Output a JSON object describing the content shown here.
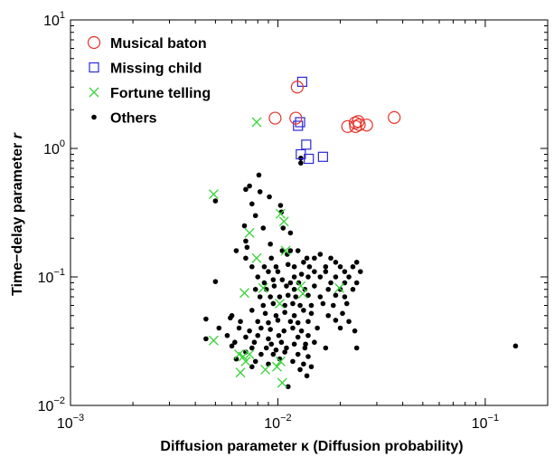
{
  "chart_data": {
    "type": "scatter",
    "xlabel": "Diffusion parameter κ  (Diffusion probability)",
    "ylabel": "Time−delay parameter r",
    "x_scale": "log",
    "y_scale": "log",
    "xlim": [
      0.001,
      0.2
    ],
    "ylim": [
      0.01,
      10
    ],
    "x_ticks": [
      {
        "base": "10",
        "exp": "−3",
        "value": 0.001
      },
      {
        "base": "10",
        "exp": "−2",
        "value": 0.01
      },
      {
        "base": "10",
        "exp": "−1",
        "value": 0.1
      }
    ],
    "y_ticks": [
      {
        "base": "10",
        "exp": "−2",
        "value": 0.01
      },
      {
        "base": "10",
        "exp": "−1",
        "value": 0.1
      },
      {
        "base": "10",
        "exp": "0",
        "value": 1
      },
      {
        "base": "10",
        "exp": "1",
        "value": 10
      }
    ],
    "grid": false,
    "legend_position": "top-left",
    "series": [
      {
        "name": "Musical baton",
        "marker": "circle",
        "color": "#e8312a",
        "points": [
          [
            0.0124,
            3.0
          ],
          [
            0.0097,
            1.72
          ],
          [
            0.0122,
            1.72
          ],
          [
            0.0217,
            1.48
          ],
          [
            0.0236,
            1.58
          ],
          [
            0.0237,
            1.48
          ],
          [
            0.0244,
            1.62
          ],
          [
            0.0247,
            1.53
          ],
          [
            0.0268,
            1.52
          ],
          [
            0.0364,
            1.74
          ]
        ]
      },
      {
        "name": "Missing child",
        "marker": "square",
        "color": "#2b2bd6",
        "points": [
          [
            0.0131,
            3.3
          ],
          [
            0.0125,
            1.5
          ],
          [
            0.0128,
            1.6
          ],
          [
            0.0137,
            1.07
          ],
          [
            0.0141,
            0.83
          ],
          [
            0.0129,
            0.9
          ],
          [
            0.0165,
            0.86
          ]
        ]
      },
      {
        "name": "Fortune telling",
        "marker": "x",
        "color": "#3cd33c",
        "points": [
          [
            0.0079,
            1.6
          ],
          [
            0.0049,
            0.44
          ],
          [
            0.0073,
            0.22
          ],
          [
            0.0103,
            0.31
          ],
          [
            0.0107,
            0.27
          ],
          [
            0.0079,
            0.14
          ],
          [
            0.0109,
            0.16
          ],
          [
            0.0069,
            0.075
          ],
          [
            0.0085,
            0.082
          ],
          [
            0.0102,
            0.062
          ],
          [
            0.0129,
            0.085
          ],
          [
            0.0132,
            0.074
          ],
          [
            0.0198,
            0.082
          ],
          [
            0.0049,
            0.032
          ],
          [
            0.0065,
            0.025
          ],
          [
            0.0068,
            0.024
          ],
          [
            0.007,
            0.022
          ],
          [
            0.0066,
            0.018
          ],
          [
            0.0087,
            0.019
          ],
          [
            0.0099,
            0.02
          ],
          [
            0.0103,
            0.022
          ],
          [
            0.0105,
            0.015
          ],
          [
            0.0073,
            0.025
          ]
        ]
      },
      {
        "name": "Others",
        "marker": "dot",
        "color": "#000000",
        "points": [
          [
            0.0129,
            0.84
          ],
          [
            0.0129,
            0.77
          ],
          [
            0.0081,
            0.62
          ],
          [
            0.0082,
            0.46
          ],
          [
            0.0073,
            0.51
          ],
          [
            0.007,
            0.48
          ],
          [
            0.0075,
            0.37
          ],
          [
            0.0091,
            0.42
          ],
          [
            0.005,
            0.39
          ],
          [
            0.0103,
            0.36
          ],
          [
            0.0104,
            0.32
          ],
          [
            0.0078,
            0.3
          ],
          [
            0.0069,
            0.25
          ],
          [
            0.0085,
            0.24
          ],
          [
            0.0106,
            0.24
          ],
          [
            0.0115,
            0.22
          ],
          [
            0.007,
            0.19
          ],
          [
            0.0092,
            0.18
          ],
          [
            0.0071,
            0.17
          ],
          [
            0.0063,
            0.16
          ],
          [
            0.0115,
            0.16
          ],
          [
            0.0125,
            0.16
          ],
          [
            0.007,
            0.14
          ],
          [
            0.0093,
            0.14
          ],
          [
            0.0105,
            0.16
          ],
          [
            0.0111,
            0.15
          ],
          [
            0.0138,
            0.14
          ],
          [
            0.015,
            0.14
          ],
          [
            0.016,
            0.15
          ],
          [
            0.018,
            0.14
          ],
          [
            0.019,
            0.13
          ],
          [
            0.012,
            0.12
          ],
          [
            0.0133,
            0.13
          ],
          [
            0.0142,
            0.12
          ],
          [
            0.0075,
            0.12
          ],
          [
            0.0086,
            0.12
          ],
          [
            0.0098,
            0.12
          ],
          [
            0.0112,
            0.125
          ],
          [
            0.017,
            0.12
          ],
          [
            0.02,
            0.12
          ],
          [
            0.023,
            0.12
          ],
          [
            0.024,
            0.13
          ],
          [
            0.008,
            0.1
          ],
          [
            0.009,
            0.11
          ],
          [
            0.01,
            0.11
          ],
          [
            0.013,
            0.105
          ],
          [
            0.015,
            0.11
          ],
          [
            0.017,
            0.11
          ],
          [
            0.021,
            0.11
          ],
          [
            0.025,
            0.11
          ],
          [
            0.012,
            0.1
          ],
          [
            0.014,
            0.1
          ],
          [
            0.016,
            0.1
          ],
          [
            0.019,
            0.1
          ],
          [
            0.022,
            0.1
          ],
          [
            0.0086,
            0.09
          ],
          [
            0.0095,
            0.095
          ],
          [
            0.0105,
            0.095
          ],
          [
            0.0115,
            0.09
          ],
          [
            0.0126,
            0.09
          ],
          [
            0.018,
            0.09
          ],
          [
            0.021,
            0.09
          ],
          [
            0.024,
            0.09
          ],
          [
            0.005,
            0.092
          ],
          [
            0.0078,
            0.08
          ],
          [
            0.0088,
            0.08
          ],
          [
            0.0096,
            0.085
          ],
          [
            0.011,
            0.085
          ],
          [
            0.012,
            0.08
          ],
          [
            0.0135,
            0.08
          ],
          [
            0.015,
            0.085
          ],
          [
            0.0175,
            0.08
          ],
          [
            0.02,
            0.08
          ],
          [
            0.023,
            0.08
          ],
          [
            0.0082,
            0.07
          ],
          [
            0.0092,
            0.07
          ],
          [
            0.0102,
            0.07
          ],
          [
            0.0112,
            0.072
          ],
          [
            0.0122,
            0.07
          ],
          [
            0.014,
            0.072
          ],
          [
            0.016,
            0.07
          ],
          [
            0.019,
            0.072
          ],
          [
            0.021,
            0.07
          ],
          [
            0.0085,
            0.06
          ],
          [
            0.0095,
            0.062
          ],
          [
            0.0108,
            0.06
          ],
          [
            0.0118,
            0.062
          ],
          [
            0.0128,
            0.06
          ],
          [
            0.0145,
            0.06
          ],
          [
            0.0165,
            0.062
          ],
          [
            0.0185,
            0.06
          ],
          [
            0.0215,
            0.062
          ],
          [
            0.006,
            0.05
          ],
          [
            0.0075,
            0.055
          ],
          [
            0.0087,
            0.052
          ],
          [
            0.0098,
            0.05
          ],
          [
            0.0108,
            0.053
          ],
          [
            0.012,
            0.05
          ],
          [
            0.0133,
            0.055
          ],
          [
            0.0145,
            0.052
          ],
          [
            0.0175,
            0.05
          ],
          [
            0.0205,
            0.052
          ],
          [
            0.0045,
            0.047
          ],
          [
            0.0059,
            0.048
          ],
          [
            0.0066,
            0.045
          ],
          [
            0.008,
            0.045
          ],
          [
            0.009,
            0.044
          ],
          [
            0.01,
            0.046
          ],
          [
            0.0115,
            0.045
          ],
          [
            0.0125,
            0.044
          ],
          [
            0.014,
            0.045
          ],
          [
            0.019,
            0.046
          ],
          [
            0.022,
            0.045
          ],
          [
            0.0052,
            0.04
          ],
          [
            0.0065,
            0.04
          ],
          [
            0.0073,
            0.038
          ],
          [
            0.0083,
            0.04
          ],
          [
            0.0092,
            0.039
          ],
          [
            0.0107,
            0.038
          ],
          [
            0.0118,
            0.04
          ],
          [
            0.013,
            0.038
          ],
          [
            0.0155,
            0.04
          ],
          [
            0.02,
            0.04
          ],
          [
            0.0235,
            0.038
          ],
          [
            0.0057,
            0.035
          ],
          [
            0.007,
            0.034
          ],
          [
            0.008,
            0.035
          ],
          [
            0.009,
            0.033
          ],
          [
            0.0101,
            0.035
          ],
          [
            0.0125,
            0.034
          ],
          [
            0.014,
            0.035
          ],
          [
            0.0045,
            0.033
          ],
          [
            0.0062,
            0.031
          ],
          [
            0.0077,
            0.031
          ],
          [
            0.0093,
            0.03
          ],
          [
            0.0104,
            0.031
          ],
          [
            0.012,
            0.03
          ],
          [
            0.0136,
            0.03
          ],
          [
            0.015,
            0.031
          ],
          [
            0.006,
            0.029
          ],
          [
            0.0075,
            0.028
          ],
          [
            0.0088,
            0.028
          ],
          [
            0.0098,
            0.027
          ],
          [
            0.011,
            0.028
          ],
          [
            0.0135,
            0.028
          ],
          [
            0.017,
            0.028
          ],
          [
            0.024,
            0.028
          ],
          [
            0.007,
            0.026
          ],
          [
            0.0083,
            0.025
          ],
          [
            0.0095,
            0.025
          ],
          [
            0.0108,
            0.026
          ],
          [
            0.0125,
            0.025
          ],
          [
            0.014,
            0.024
          ],
          [
            0.0063,
            0.023
          ],
          [
            0.0078,
            0.022
          ],
          [
            0.009,
            0.021
          ],
          [
            0.0102,
            0.023
          ],
          [
            0.0118,
            0.022
          ],
          [
            0.0133,
            0.021
          ],
          [
            0.0145,
            0.02
          ],
          [
            0.0075,
            0.02
          ],
          [
            0.0128,
            0.019
          ],
          [
            0.0138,
            0.017
          ],
          [
            0.0112,
            0.014
          ],
          [
            0.14,
            0.029
          ]
        ]
      }
    ]
  }
}
